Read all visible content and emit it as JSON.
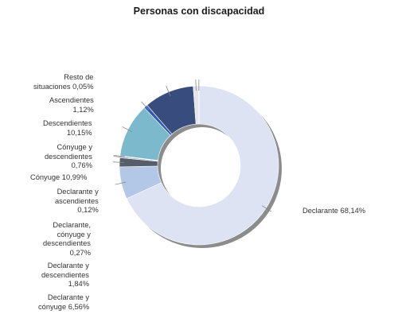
{
  "chart_data": {
    "type": "pie",
    "variant": "donut",
    "title": "Personas con discapacidad",
    "slices": [
      {
        "name": "Declarante",
        "value": 68.14,
        "label": "Declarante 68,14%",
        "color": "#dde3f2"
      },
      {
        "name": "Declarante y cónyuge",
        "value": 6.56,
        "label": "Declarante y\ncónyuge 6,56%",
        "color": "#b3c8e6"
      },
      {
        "name": "Declarante y descendientes",
        "value": 1.84,
        "label": "Declarante y\ndescendientes\n1,84%",
        "color": "#555e6a"
      },
      {
        "name": "Declarante, cónyuge y descendientes",
        "value": 0.27,
        "label": "Declarante,\ncónyuge y\ndescendientes\n0,27%",
        "color": "#8fa2b4"
      },
      {
        "name": "Declarante y ascendientes",
        "value": 0.12,
        "label": "Declarante y\nascendientes\n0,12%",
        "color": "#3a5590"
      },
      {
        "name": "Cónyuge",
        "value": 10.99,
        "label": "Cónyuge 10,99%",
        "color": "#7cb9cc"
      },
      {
        "name": "Cónyuge y descendientes",
        "value": 0.76,
        "label": "Cónyuge y\ndescendientes\n0,76%",
        "color": "#2e5db0"
      },
      {
        "name": "Descendientes",
        "value": 10.15,
        "label": "Descendientes\n10,15%",
        "color": "#394c7e"
      },
      {
        "name": "Ascendientes",
        "value": 1.12,
        "label": "Ascendientes\n1,12%",
        "color": "#e4e4ea"
      },
      {
        "name": "Resto de situaciones",
        "value": 0.05,
        "label": "Resto de\nsituaciones 0,05%",
        "color": "#a7aecb"
      }
    ]
  }
}
